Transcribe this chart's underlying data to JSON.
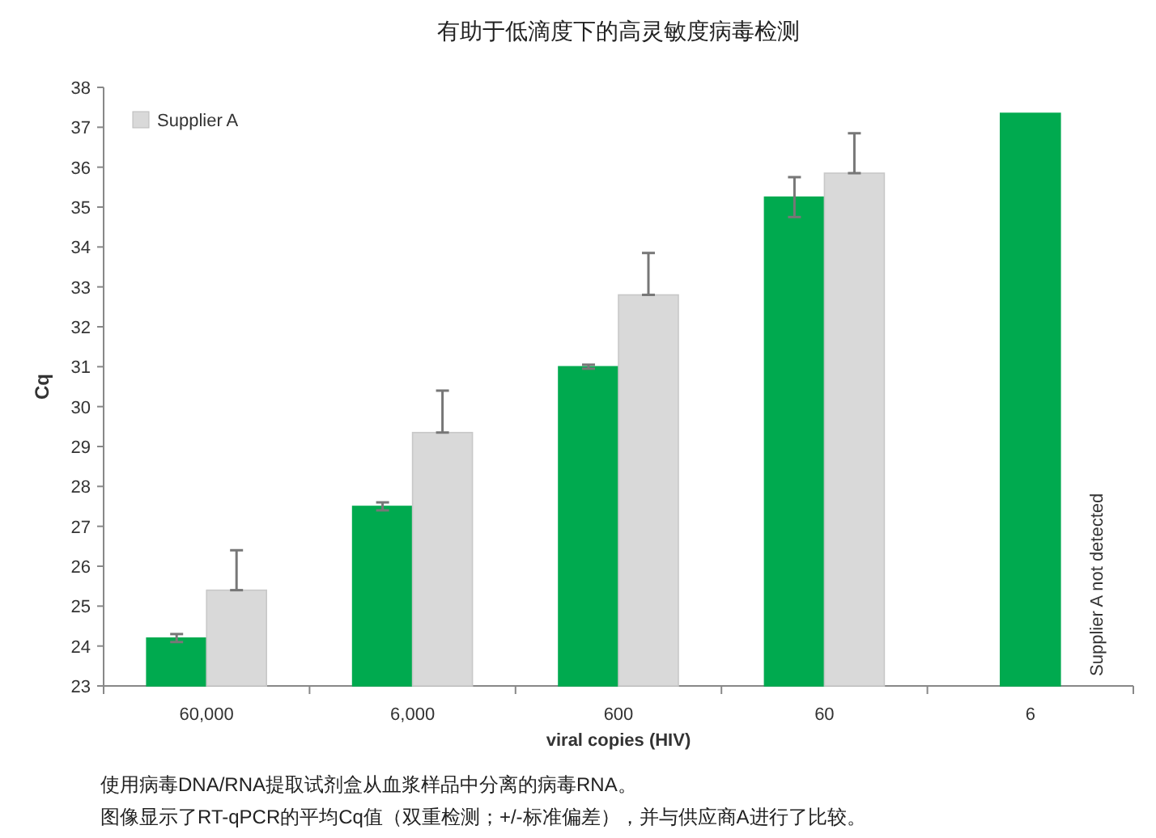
{
  "chart_data": {
    "type": "bar",
    "title": "有助于低滴度下的高灵敏度病毒检测",
    "xlabel": "viral copies (HIV)",
    "ylabel": "Cq",
    "categories": [
      "60,000",
      "6,000",
      "600",
      "60",
      "6"
    ],
    "series": [
      {
        "color": "#00aa4f",
        "values": [
          24.2,
          27.5,
          31.0,
          35.25,
          37.35
        ],
        "errors": [
          0.1,
          0.1,
          0.05,
          0.5,
          null
        ]
      },
      {
        "name": "Supplier A",
        "color": "#d9d9d9",
        "values": [
          25.4,
          29.35,
          32.8,
          35.85,
          null
        ],
        "errors": [
          [
            25.4,
            26.4
          ],
          [
            29.35,
            30.4
          ],
          [
            32.8,
            33.85
          ],
          [
            35.85,
            36.85
          ],
          null
        ]
      }
    ],
    "ylim": [
      23,
      38
    ],
    "yticks": [
      23,
      24,
      25,
      26,
      27,
      28,
      29,
      30,
      31,
      32,
      33,
      34,
      35,
      36,
      37,
      38
    ],
    "legend": "top left",
    "annotations": [
      "Supplier A not detected",
      "使用病毒DNA/RNA提取试剂盒从血浆样品中分离的病毒RNA。",
      "图像显示了RT-qPCR的平均Cq值（双重检测；+/-标准偏差），并与供应商A进行了比较。"
    ]
  }
}
